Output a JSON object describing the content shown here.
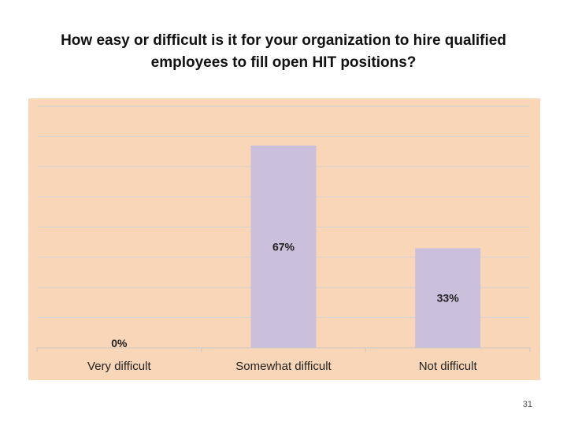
{
  "slide": {
    "title_lines": [
      "How easy or difficult is it for your organization to hire qualified",
      "employees to fill open HIT positions?"
    ],
    "page_number": "31"
  },
  "chart_data": {
    "type": "bar",
    "title": "How easy or difficult is it for your organization to hire qualified employees to fill open HIT positions?",
    "categories": [
      "Very difficult",
      "Somewhat difficult",
      "Not difficult"
    ],
    "values": [
      0,
      67,
      33
    ],
    "value_labels": [
      "0%",
      "67%",
      "33%"
    ],
    "xlabel": "",
    "ylabel": "",
    "ylim": [
      0,
      80
    ],
    "grid": true,
    "legend": "none",
    "colors": {
      "plot_background": "#fad6b8",
      "bar": "#cbc0dc",
      "gridline": "#d3d3d3",
      "axis": "#c8c8c8"
    }
  }
}
